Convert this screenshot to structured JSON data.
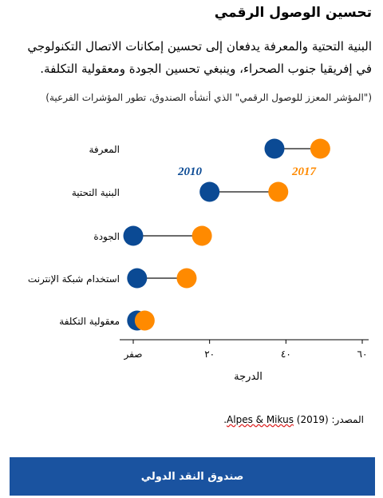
{
  "header": {
    "title": "تحسين الوصول الرقمي",
    "subtitle": "البنية التحتية والمعرفة يدفعان إلى تحسين إمكانات الاتصال التكنولوجي في إفريقيا جنوب الصحراء، وينبغي تحسين الجودة ومعقولية التكلفة.",
    "note": "(\"المؤشر المعزز للوصول الرقمي\" الذي أنشأه الصندوق، تطور المؤشرات الفرعية)"
  },
  "chart_data": {
    "type": "dot",
    "categories": [
      "المعرفة",
      "البنية التحتية",
      "الجودة",
      "استخدام شبكة الإنترنت",
      "معقولية التكلفة"
    ],
    "series": [
      {
        "name": "2010",
        "color": "#0b4a94",
        "values": [
          37,
          20,
          0,
          1,
          1
        ]
      },
      {
        "name": "2017",
        "color": "#ff8a00",
        "values": [
          49,
          38,
          18,
          14,
          3
        ]
      }
    ],
    "xlabel": "الدرجة",
    "xlim": [
      0,
      60
    ],
    "xticks": [
      "صفر",
      "٢٠",
      "٤٠",
      "٦٠"
    ],
    "connector_color": "#6b6b6b"
  },
  "source": {
    "prefix": "المصدر:",
    "author": "Alpes & Mikus",
    "rest": "(2019)."
  },
  "footer": {
    "label": "صندوق النقد الدولي"
  }
}
